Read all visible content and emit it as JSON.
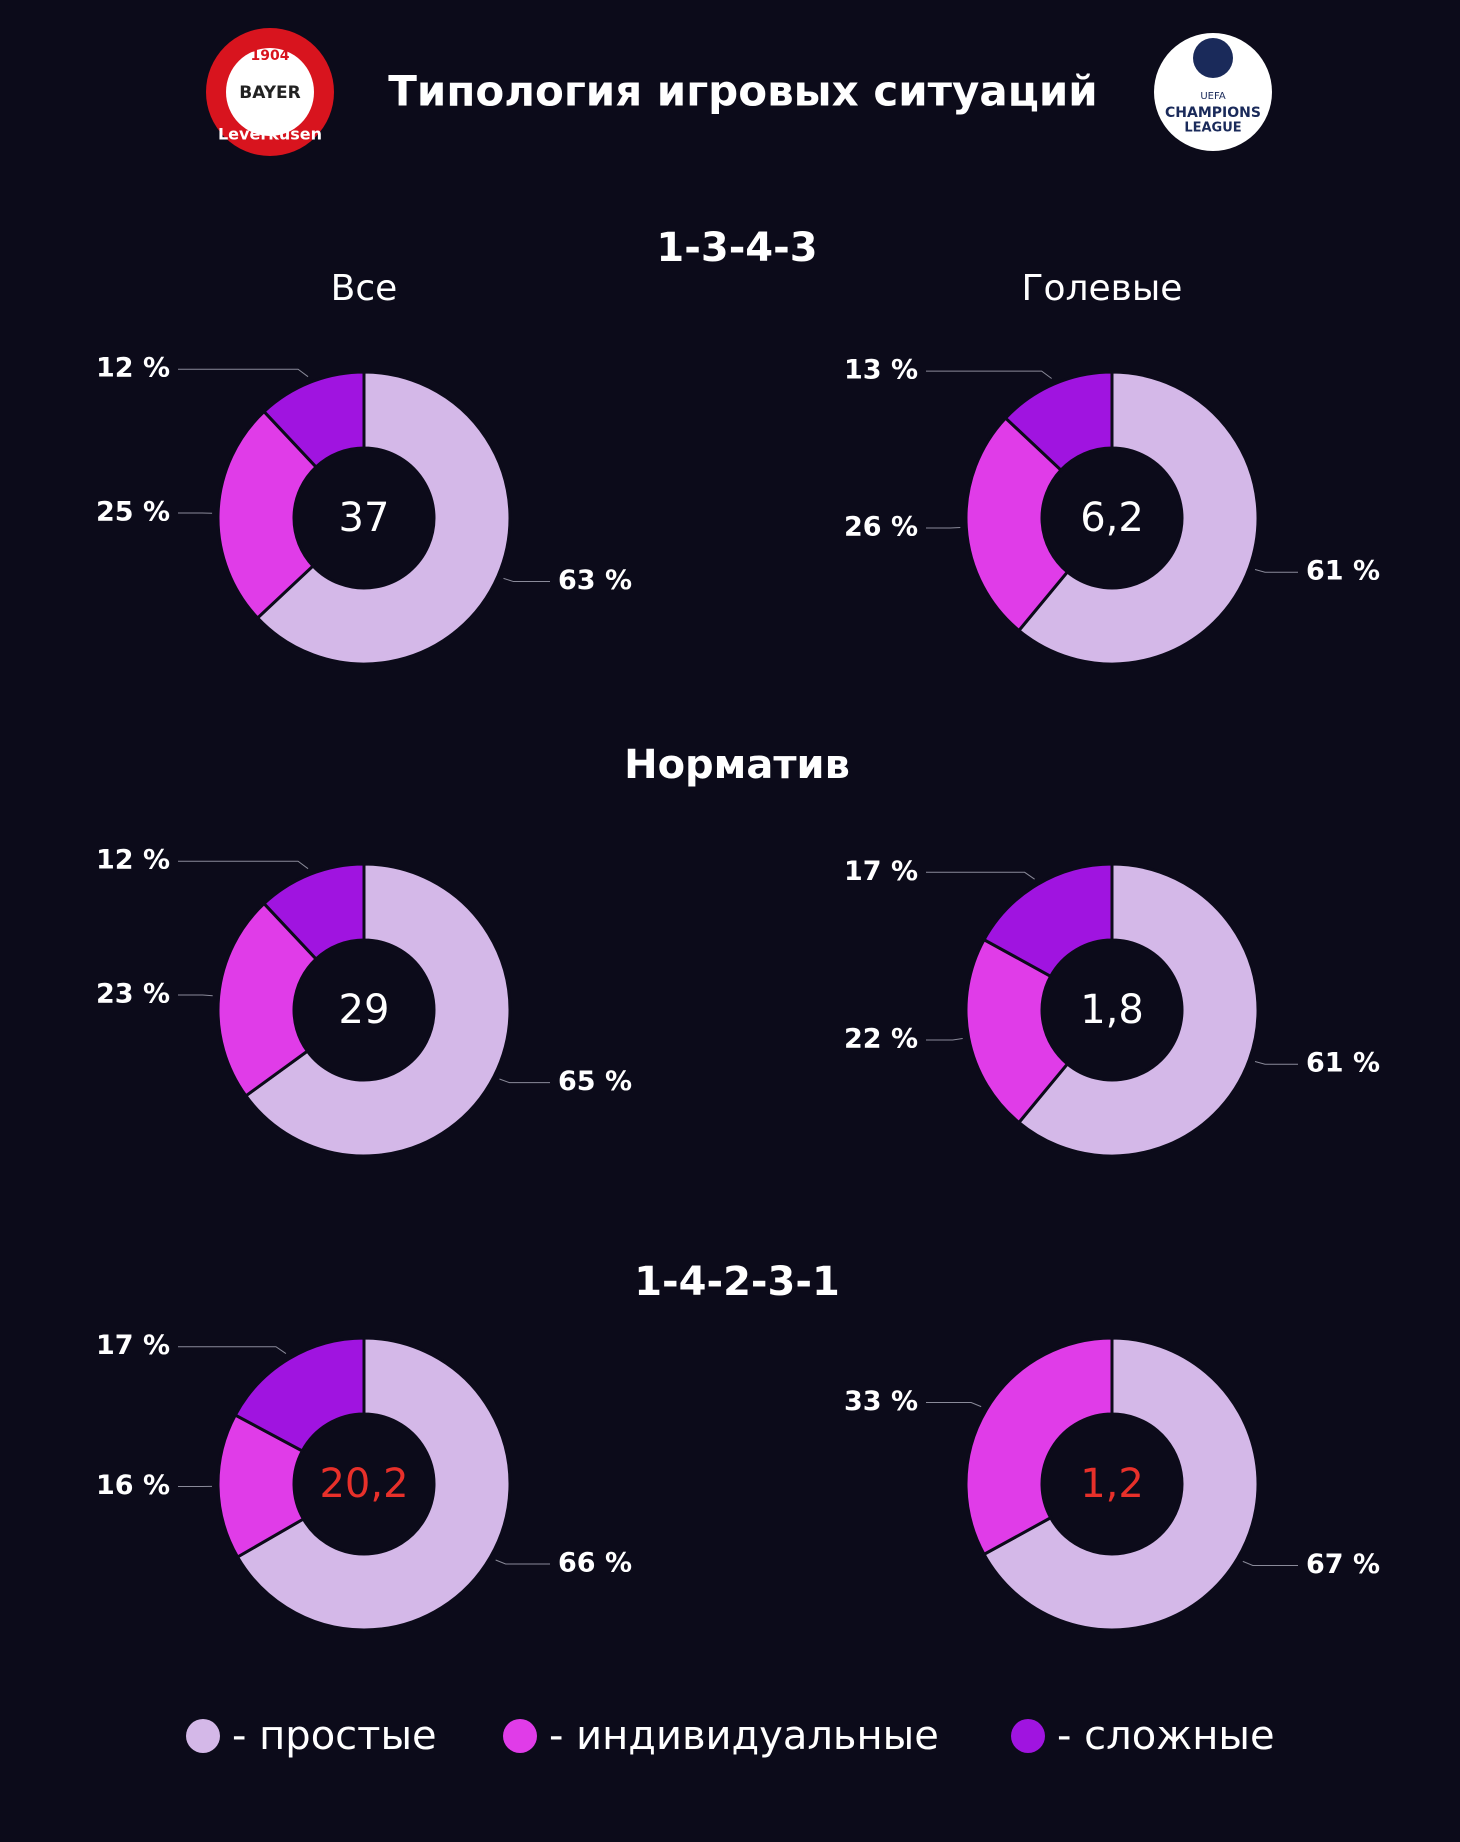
{
  "title": "Типология игровых ситуаций",
  "logos": {
    "left": [
      "1904",
      "BAYER",
      "Leverkusen"
    ],
    "right": [
      "UEFA",
      "CHAMPIONS",
      "LEAGUE"
    ]
  },
  "sections": [
    "1-3-4-3",
    "Норматив",
    "1-4-2-3-1"
  ],
  "columns": [
    "Все",
    "Голевые"
  ],
  "chart_data": [
    {
      "type": "donut",
      "categories": [
        "- простые",
        "- индивидуальные",
        "- сложные"
      ],
      "values": [
        63,
        25,
        12
      ],
      "value_labels": [
        "63 %",
        "25 %",
        "12 %"
      ],
      "colors": [
        "#d4b8e8",
        "#e03ce8",
        "#a014e0"
      ],
      "center_label": "37",
      "center_color": "#ffffff"
    },
    {
      "type": "donut",
      "categories": [
        "- простые",
        "- индивидуальные",
        "- сложные"
      ],
      "values": [
        61,
        26,
        13
      ],
      "value_labels": [
        "61 %",
        "26 %",
        "13 %"
      ],
      "colors": [
        "#d4b8e8",
        "#e03ce8",
        "#a014e0"
      ],
      "center_label": "6,2",
      "center_color": "#ffffff"
    },
    {
      "type": "donut",
      "categories": [
        "- простые",
        "- индивидуальные",
        "- сложные"
      ],
      "values": [
        65,
        23,
        12
      ],
      "value_labels": [
        "65 %",
        "23 %",
        "12 %"
      ],
      "colors": [
        "#d4b8e8",
        "#e03ce8",
        "#a014e0"
      ],
      "center_label": "29",
      "center_color": "#ffffff"
    },
    {
      "type": "donut",
      "categories": [
        "- простые",
        "- индивидуальные",
        "- сложные"
      ],
      "values": [
        61,
        22,
        17
      ],
      "value_labels": [
        "61 %",
        "22 %",
        "17 %"
      ],
      "colors": [
        "#d4b8e8",
        "#e03ce8",
        "#a014e0"
      ],
      "center_label": "1,8",
      "center_color": "#ffffff"
    },
    {
      "type": "donut",
      "categories": [
        "- простые",
        "- индивидуальные",
        "- сложные"
      ],
      "values": [
        66,
        16,
        17
      ],
      "value_labels": [
        "66 %",
        "16 %",
        "17 %"
      ],
      "colors": [
        "#d4b8e8",
        "#e03ce8",
        "#a014e0"
      ],
      "center_label": "20,2",
      "center_color": "#e8302a"
    },
    {
      "type": "donut",
      "categories": [
        "- простые",
        "- индивидуальные"
      ],
      "values": [
        67,
        33
      ],
      "value_labels": [
        "67 %",
        "33 %"
      ],
      "colors": [
        "#d4b8e8",
        "#e03ce8"
      ],
      "center_label": "1,2",
      "center_color": "#e8302a"
    }
  ]
}
